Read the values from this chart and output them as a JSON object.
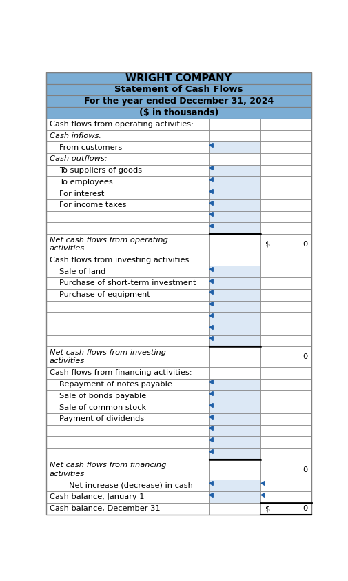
{
  "title_lines": [
    "WRIGHT COMPANY",
    "Statement of Cash Flows",
    "For the year ended December 31, 2024",
    "($ in thousands)"
  ],
  "header_bg": "#7badd4",
  "grid_color": "#808080",
  "input_bg": "#dce8f5",
  "white": "#ffffff",
  "rows": [
    {
      "label": "Cash flows from operating activities:",
      "indent": 0,
      "style": "section_header",
      "col2": "",
      "col2_prefix": ""
    },
    {
      "label": "Cash inflows:",
      "indent": 0,
      "style": "italic_header",
      "col2": "",
      "col2_prefix": ""
    },
    {
      "label": "From customers",
      "indent": 1,
      "style": "input",
      "col2": "",
      "col2_prefix": ""
    },
    {
      "label": "Cash outflows:",
      "indent": 0,
      "style": "italic_header",
      "col2": "",
      "col2_prefix": ""
    },
    {
      "label": "To suppliers of goods",
      "indent": 1,
      "style": "input",
      "col2": "",
      "col2_prefix": ""
    },
    {
      "label": "To employees",
      "indent": 1,
      "style": "input",
      "col2": "",
      "col2_prefix": ""
    },
    {
      "label": "For interest",
      "indent": 1,
      "style": "input",
      "col2": "",
      "col2_prefix": ""
    },
    {
      "label": "For income taxes",
      "indent": 1,
      "style": "input",
      "col2": "",
      "col2_prefix": ""
    },
    {
      "label": "",
      "indent": 1,
      "style": "input",
      "col2": "",
      "col2_prefix": ""
    },
    {
      "label": "",
      "indent": 1,
      "style": "input_underline",
      "col2": "",
      "col2_prefix": ""
    },
    {
      "label": "Net cash flows from operating\nactivities.",
      "indent": 0,
      "style": "net_row",
      "col2": "0",
      "col2_prefix": "$"
    },
    {
      "label": "Cash flows from investing activities:",
      "indent": 0,
      "style": "section_header",
      "col2": "",
      "col2_prefix": ""
    },
    {
      "label": "Sale of land",
      "indent": 1,
      "style": "input",
      "col2": "",
      "col2_prefix": ""
    },
    {
      "label": "Purchase of short-term investment",
      "indent": 1,
      "style": "input",
      "col2": "",
      "col2_prefix": ""
    },
    {
      "label": "Purchase of equipment",
      "indent": 1,
      "style": "input",
      "col2": "",
      "col2_prefix": ""
    },
    {
      "label": "",
      "indent": 1,
      "style": "input",
      "col2": "",
      "col2_prefix": ""
    },
    {
      "label": "",
      "indent": 1,
      "style": "input",
      "col2": "",
      "col2_prefix": ""
    },
    {
      "label": "",
      "indent": 1,
      "style": "input",
      "col2": "",
      "col2_prefix": ""
    },
    {
      "label": "",
      "indent": 1,
      "style": "input_underline",
      "col2": "",
      "col2_prefix": ""
    },
    {
      "label": "Net cash flows from investing\nactivities",
      "indent": 0,
      "style": "net_row",
      "col2": "0",
      "col2_prefix": ""
    },
    {
      "label": "Cash flows from financing activities:",
      "indent": 0,
      "style": "section_header",
      "col2": "",
      "col2_prefix": ""
    },
    {
      "label": "Repayment of notes payable",
      "indent": 1,
      "style": "input",
      "col2": "",
      "col2_prefix": ""
    },
    {
      "label": "Sale of bonds payable",
      "indent": 1,
      "style": "input",
      "col2": "",
      "col2_prefix": ""
    },
    {
      "label": "Sale of common stock",
      "indent": 1,
      "style": "input",
      "col2": "",
      "col2_prefix": ""
    },
    {
      "label": "Payment of dividends",
      "indent": 1,
      "style": "input",
      "col2": "",
      "col2_prefix": ""
    },
    {
      "label": "",
      "indent": 1,
      "style": "input",
      "col2": "",
      "col2_prefix": ""
    },
    {
      "label": "",
      "indent": 1,
      "style": "input",
      "col2": "",
      "col2_prefix": ""
    },
    {
      "label": "",
      "indent": 1,
      "style": "input_underline",
      "col2": "",
      "col2_prefix": ""
    },
    {
      "label": "Net cash flows from financing\nactivities",
      "indent": 0,
      "style": "net_row",
      "col2": "0",
      "col2_prefix": ""
    },
    {
      "label": "Net increase (decrease) in cash",
      "indent": 2,
      "style": "input_highlight",
      "col2": "",
      "col2_prefix": ""
    },
    {
      "label": "Cash balance, January 1",
      "indent": 0,
      "style": "input_highlight2",
      "col2": "",
      "col2_prefix": ""
    },
    {
      "label": "Cash balance, December 31",
      "indent": 0,
      "style": "final_row",
      "col2": "0",
      "col2_prefix": "$"
    }
  ],
  "figsize": [
    5.06,
    8.42
  ],
  "dpi": 100
}
